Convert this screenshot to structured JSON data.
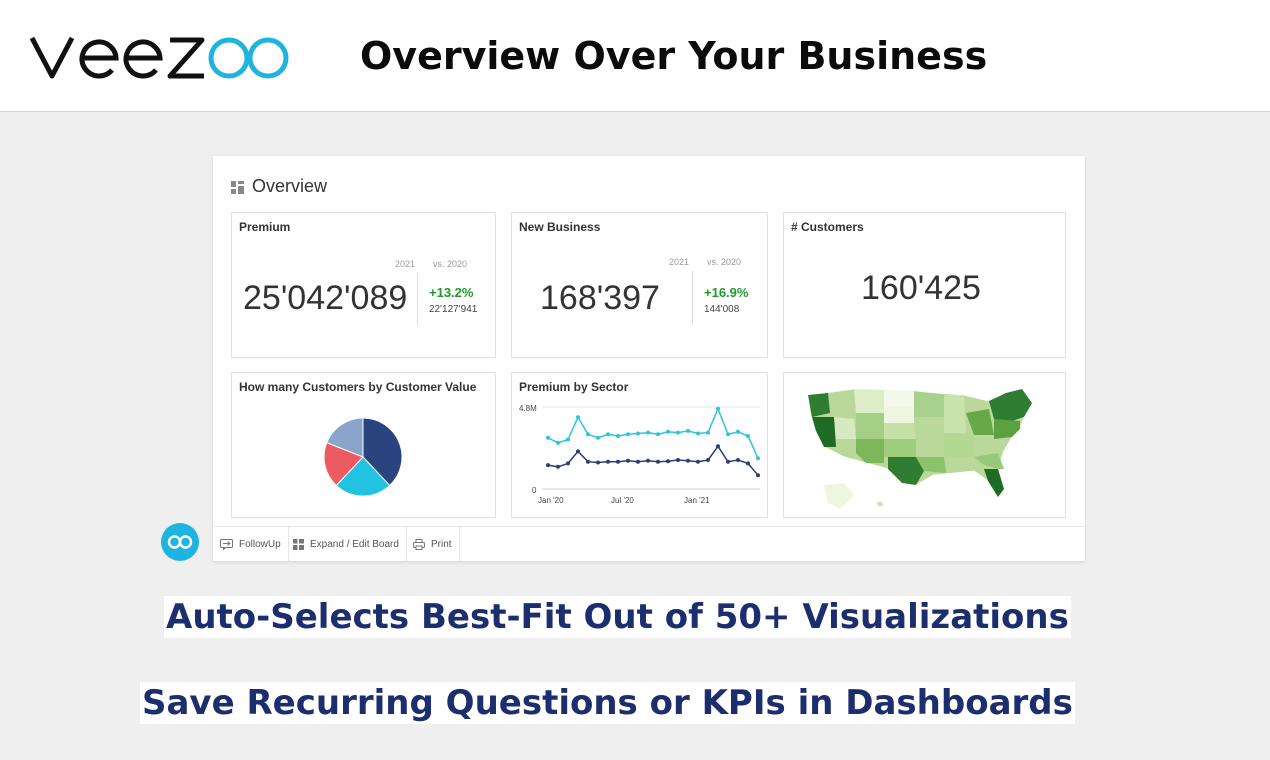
{
  "header": {
    "brand": "veezoo",
    "headline": "Overview Over Your Business"
  },
  "board": {
    "title": "Overview",
    "tiles": {
      "premium": {
        "title": "Premium",
        "year": "2021",
        "vs": "vs. 2020",
        "value": "25'042'089",
        "delta": "+13.2%",
        "prev": "22'127'941"
      },
      "new_business": {
        "title": "New Business",
        "year": "2021",
        "vs": "vs. 2020",
        "value": "168'397",
        "delta": "+16.9%",
        "prev": "144'008"
      },
      "customers": {
        "title": "# Customers",
        "value": "160'425"
      },
      "pie": {
        "title": "How many Customers by Customer Value"
      },
      "sector": {
        "title": "Premium by Sector",
        "y_top": "4.8M",
        "y_zero": "0",
        "x_ticks": [
          "Jan '20",
          "Jul '20",
          "Jan '21"
        ]
      }
    },
    "footer": {
      "followup": "FollowUp",
      "expand": "Expand / Edit Board",
      "print": "Print"
    }
  },
  "chart_data": [
    {
      "type": "pie",
      "title": "How many Customers by Customer Value",
      "values": [
        38,
        24,
        19,
        19
      ],
      "colors": [
        "#2a4480",
        "#22c2e2",
        "#ee5a61",
        "#8aa4cc"
      ]
    },
    {
      "type": "line",
      "title": "Premium by Sector",
      "x": [
        "Jan '20",
        "",
        "",
        "",
        "",
        "",
        "Jul '20",
        "",
        "",
        "",
        "",
        "",
        "Jan '21",
        "",
        "",
        "",
        "",
        "",
        "",
        "",
        "",
        ""
      ],
      "ylim": [
        0,
        4.8
      ],
      "series": [
        {
          "values": [
            3.0,
            2.7,
            2.9,
            4.2,
            3.2,
            3.0,
            3.2,
            3.1,
            3.2,
            3.25,
            3.3,
            3.2,
            3.35,
            3.3,
            3.4,
            3.25,
            3.3,
            4.7,
            3.2,
            3.35,
            3.1,
            1.8
          ],
          "color": "#2cc6dc"
        },
        {
          "values": [
            1.4,
            1.3,
            1.5,
            2.2,
            1.6,
            1.55,
            1.6,
            1.6,
            1.65,
            1.6,
            1.65,
            1.6,
            1.62,
            1.7,
            1.65,
            1.6,
            1.7,
            2.5,
            1.6,
            1.7,
            1.5,
            0.8
          ],
          "color": "#2c3e78"
        }
      ]
    }
  ],
  "taglines": {
    "line1": "Auto-Selects Best-Fit Out of 50+ Visualizations",
    "line2": "Save Recurring Questions or KPIs in Dashboards"
  },
  "icons": {
    "board": "dashboard-icon",
    "followup": "followup-icon",
    "expand": "grid-icon",
    "print": "printer-icon",
    "fab": "veezoo-logo-icon"
  },
  "colors": {
    "accent": "#1fb4e0",
    "positive": "#1f9a2a",
    "tagline": "#1c2e6e"
  }
}
